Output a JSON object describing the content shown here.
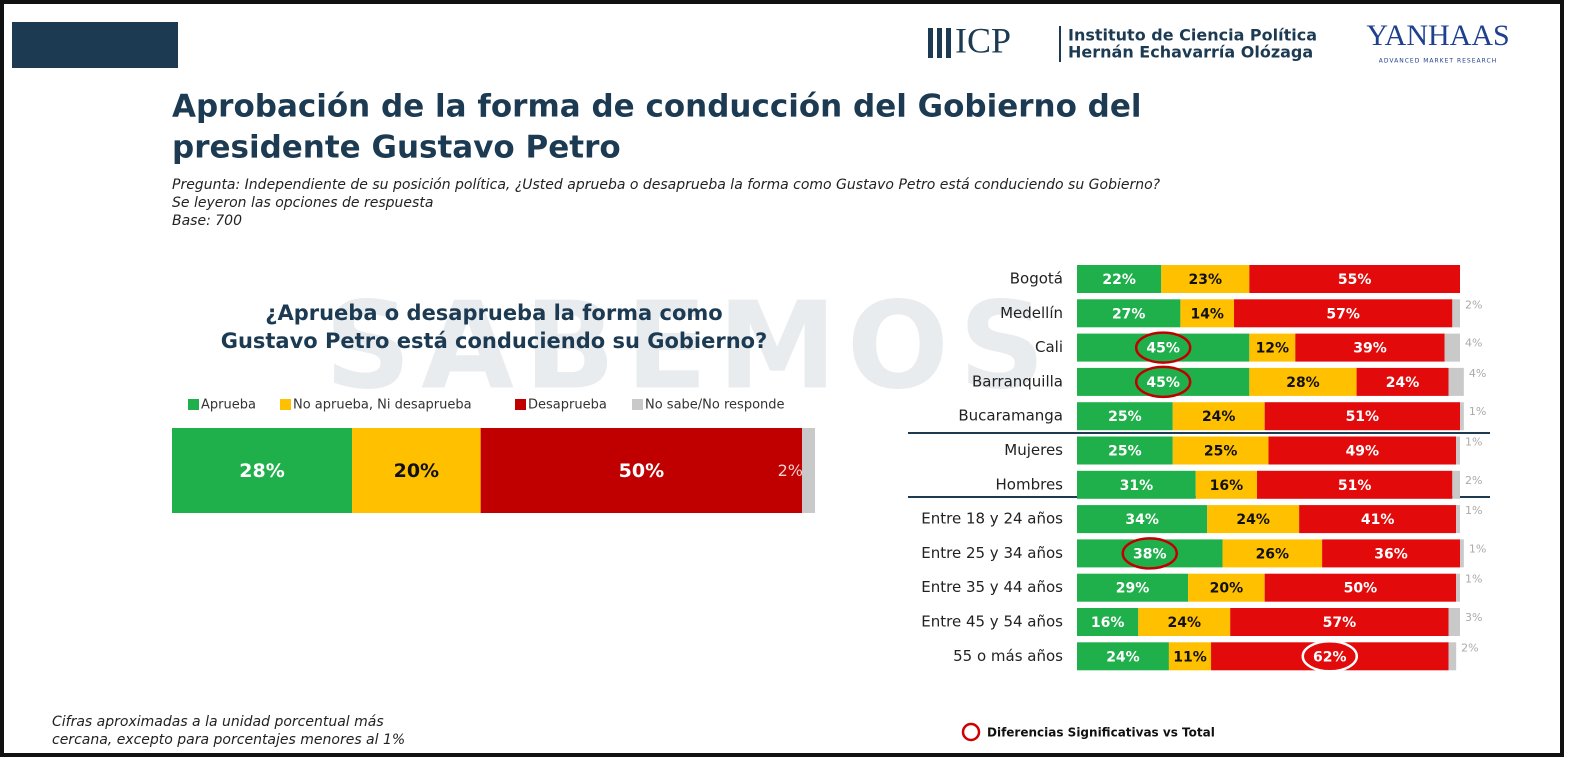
{
  "slide": {
    "title_lines": [
      "Aprobación de la forma de conducción del Gobierno del",
      "presidente Gustavo Petro"
    ],
    "question_lines": [
      "Pregunta: Independiente de su posición política, ¿Usted aprueba o desaprueba la forma como Gustavo Petro está conduciendo su Gobierno?",
      "Se leyeron las opciones de respuesta",
      "Base: 700"
    ],
    "footnote_lines": [
      "Cifras aproximadas a la unidad porcentual más",
      "cercana, excepto para porcentajes menores al 1%"
    ],
    "significance_note": "Diferencias Significativas vs Total",
    "watermark": "SABEMOS",
    "logo_icp": "ICP",
    "logo_icp_lines": [
      "Instituto de Ciencia Política",
      "Hernán Echavarría Olózaga"
    ],
    "logo_yanhaas": "YANHAAS",
    "logo_yanhaas_tagline": "ADVANCED MARKET RESEARCH"
  },
  "chart_data": [
    {
      "type": "bar",
      "orientation": "horizontal",
      "stacked": true,
      "title_lines": [
        "¿Aprueba o desaprueba la forma como",
        "Gustavo Petro está conduciendo su Gobierno?"
      ],
      "categories": [
        null
      ],
      "xlim": [
        0,
        100
      ],
      "series": [
        {
          "name": "Aprueba",
          "color": "#1fb04b",
          "values": [
            28
          ],
          "value_labels": [
            "28%"
          ]
        },
        {
          "name": "No aprueba, Ni desaprueba",
          "color": "#ffc000",
          "values": [
            20
          ],
          "value_labels": [
            "20%"
          ]
        },
        {
          "name": "Desaprueba",
          "color": "#c00000",
          "values": [
            50
          ],
          "value_labels": [
            "50%"
          ]
        },
        {
          "name": "No sabe/No responde",
          "color": "#c9c9c9",
          "values": [
            2
          ],
          "value_labels": [
            "2%"
          ]
        }
      ]
    },
    {
      "type": "bar",
      "orientation": "horizontal",
      "stacked": true,
      "categories": [
        "Bogotá",
        "Medellín",
        "Cali",
        "Barranquilla",
        "Bucaramanga",
        "Mujeres",
        "Hombres",
        "Entre 18 y 24 años",
        "Entre 25 y 34 años",
        "Entre 35 y 44 años",
        "Entre 45 y 54 años",
        "55 o más años"
      ],
      "xlim": [
        0,
        100
      ],
      "highlights": [
        [
          0,
          2
        ],
        [
          0,
          3
        ],
        [
          0,
          8
        ],
        [
          2,
          11
        ]
      ],
      "series": [
        {
          "name": "Aprueba",
          "color": "#1fb04b",
          "values": [
            22,
            27,
            45,
            45,
            25,
            25,
            31,
            34,
            38,
            29,
            16,
            24
          ],
          "value_labels": [
            "22%",
            "27%",
            "45%",
            "45%",
            "25%",
            "25%",
            "31%",
            "34%",
            "38%",
            "29%",
            "16%",
            "24%"
          ]
        },
        {
          "name": "No aprueba, Ni desaprueba",
          "color": "#ffc000",
          "values": [
            23,
            14,
            12,
            28,
            24,
            25,
            16,
            24,
            26,
            20,
            24,
            11
          ],
          "value_labels": [
            "23%",
            "14%",
            "12%",
            "28%",
            "24%",
            "25%",
            "16%",
            "24%",
            "26%",
            "20%",
            "24%",
            "11%"
          ]
        },
        {
          "name": "Desaprueba",
          "color": "#e20a0a",
          "values": [
            55,
            57,
            39,
            24,
            51,
            49,
            51,
            41,
            36,
            50,
            57,
            62
          ],
          "value_labels": [
            "55%",
            "57%",
            "39%",
            "24%",
            "51%",
            "49%",
            "51%",
            "41%",
            "36%",
            "50%",
            "57%",
            "62%"
          ]
        },
        {
          "name": "No sabe/No responde",
          "color": "#c9c9c9",
          "values": [
            null,
            2,
            4,
            4,
            1,
            1,
            2,
            1,
            1,
            1,
            3,
            2
          ],
          "value_labels": [
            null,
            "2%",
            "4%",
            "4%",
            "1%",
            "1%",
            "2%",
            "1%",
            "1%",
            "1%",
            "3%",
            "2%"
          ]
        }
      ]
    }
  ]
}
